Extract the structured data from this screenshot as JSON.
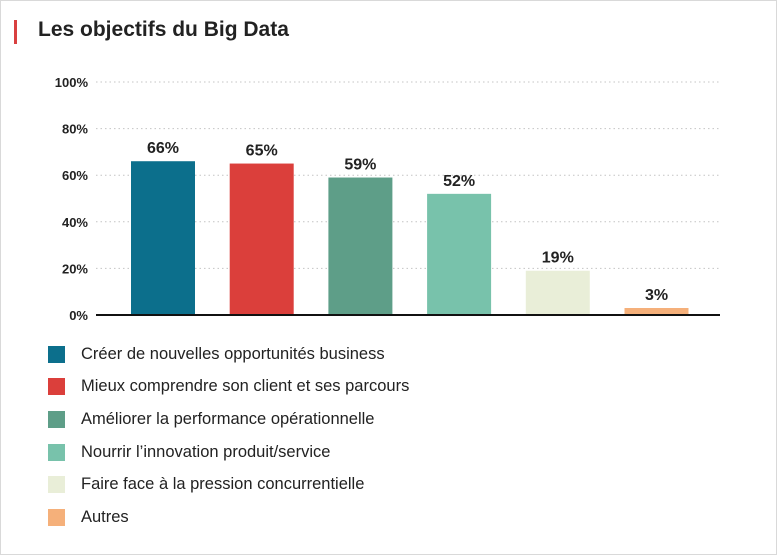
{
  "chart_data": {
    "type": "bar",
    "title": "Les objectifs du Big Data",
    "categories": [
      "Créer de nouvelles opportunités business",
      "Mieux comprendre son client et ses parcours",
      "Améliorer la performance opérationnelle",
      "Nourrir l’innovation produit/service",
      "Faire face à la pression concurrentielle",
      "Autres"
    ],
    "values": [
      66,
      65,
      59,
      52,
      19,
      3
    ],
    "value_labels": [
      "66%",
      "65%",
      "59%",
      "52%",
      "19%",
      "3%"
    ],
    "colors": [
      "#0c6f8c",
      "#db3f3b",
      "#5e9e88",
      "#78c2ab",
      "#e9eed8",
      "#f5b07a"
    ],
    "ylim": [
      0,
      100
    ],
    "yticks": [
      0,
      20,
      40,
      60,
      80,
      100
    ],
    "ytick_labels": [
      "0%",
      "20%",
      "40%",
      "60%",
      "80%",
      "100%"
    ],
    "xlabel": "",
    "ylabel": "",
    "grid": "horizontal dotted",
    "legend_position": "bottom"
  }
}
